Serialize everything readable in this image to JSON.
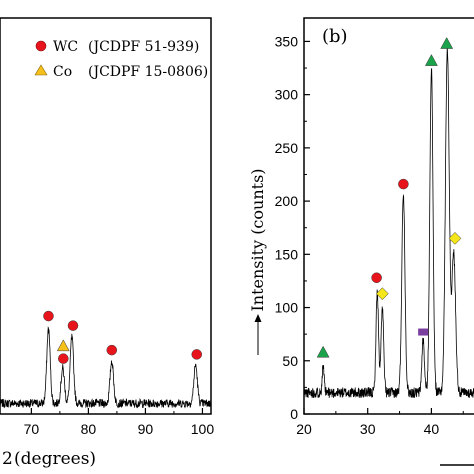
{
  "chart_data": [
    {
      "panel": "a",
      "type": "line",
      "xlabel": "(degrees)",
      "xlabel_prefix_visible": "2",
      "xticks": [
        70,
        80,
        90,
        100
      ],
      "xlim": [
        64.5,
        101.5
      ],
      "ylim": [
        0,
        372
      ],
      "legend": {
        "placement": "top-right",
        "entries": [
          {
            "marker": "circle",
            "color": "#e8141b",
            "label": "WC",
            "source": "(JCDPF 51-939)"
          },
          {
            "marker": "triangle",
            "color": "#f5c01a",
            "label": "Co",
            "source": "(JCDPF 15-0806)"
          }
        ]
      },
      "series": [
        {
          "baseline": 10,
          "noise": 4,
          "peaks": [
            {
              "x": 73.0,
              "y": 80,
              "w": 0.3
            },
            {
              "x": 75.5,
              "y": 43,
              "w": 0.3
            },
            {
              "x": 77.1,
              "y": 72,
              "w": 0.3
            },
            {
              "x": 84.1,
              "y": 50,
              "w": 0.3
            },
            {
              "x": 98.8,
              "y": 46,
              "w": 0.3
            }
          ]
        }
      ],
      "markers": [
        {
          "x": 73.0,
          "y": 92,
          "shape": "circle",
          "phase": "WC"
        },
        {
          "x": 75.6,
          "y": 52,
          "shape": "circle",
          "phase": "WC"
        },
        {
          "x": 75.6,
          "y": 64,
          "shape": "triangle",
          "phase": "Co"
        },
        {
          "x": 77.3,
          "y": 83,
          "shape": "circle",
          "phase": "WC"
        },
        {
          "x": 84.1,
          "y": 60,
          "shape": "circle",
          "phase": "WC"
        },
        {
          "x": 99.0,
          "y": 56,
          "shape": "circle",
          "phase": "WC"
        }
      ]
    },
    {
      "panel": "b",
      "label": "(b)",
      "type": "line",
      "ylabel": "Intensity  (counts)",
      "xticks": [
        20,
        30,
        40
      ],
      "yticks": [
        0,
        50,
        100,
        150,
        200,
        250,
        300,
        350
      ],
      "xlim": [
        20,
        47
      ],
      "ylim": [
        0,
        372
      ],
      "series": [
        {
          "baseline": 20,
          "noise": 5,
          "peaks": [
            {
              "x": 23.0,
              "y": 45,
              "w": 0.15
            },
            {
              "x": 31.5,
              "y": 115,
              "w": 0.2
            },
            {
              "x": 32.3,
              "y": 100,
              "w": 0.2
            },
            {
              "x": 35.6,
              "y": 208,
              "w": 0.25
            },
            {
              "x": 38.7,
              "y": 70,
              "w": 0.2
            },
            {
              "x": 40.0,
              "y": 325,
              "w": 0.25
            },
            {
              "x": 42.5,
              "y": 343,
              "w": 0.3
            },
            {
              "x": 43.5,
              "y": 150,
              "w": 0.3
            }
          ]
        }
      ],
      "markers": [
        {
          "x": 23.0,
          "y": 58,
          "shape": "triangle",
          "color": "#1aa34a"
        },
        {
          "x": 31.4,
          "y": 128,
          "shape": "circle",
          "color": "#e8141b"
        },
        {
          "x": 32.3,
          "y": 113,
          "shape": "diamond",
          "color": "#f5e61a"
        },
        {
          "x": 35.6,
          "y": 216,
          "shape": "circle",
          "color": "#e8141b"
        },
        {
          "x": 38.7,
          "y": 77,
          "shape": "square",
          "color": "#7b3fa0"
        },
        {
          "x": 40.0,
          "y": 332,
          "shape": "triangle",
          "color": "#1aa34a"
        },
        {
          "x": 42.4,
          "y": 348,
          "shape": "triangle",
          "color": "#1aa34a"
        },
        {
          "x": 43.7,
          "y": 165,
          "shape": "diamond",
          "color": "#f5e61a"
        }
      ]
    }
  ]
}
